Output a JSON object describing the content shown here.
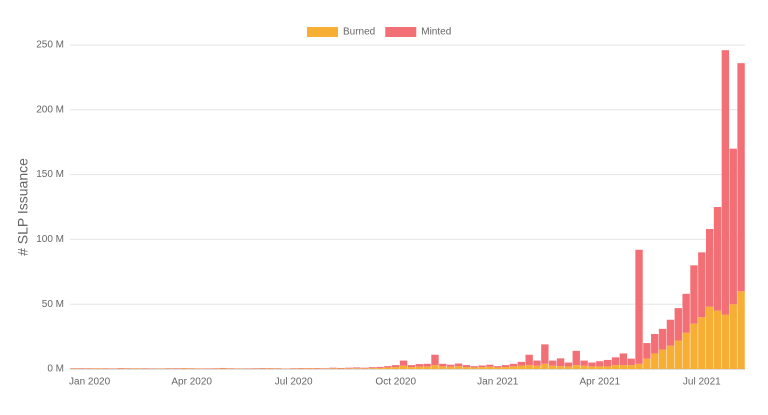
{
  "chart_data": {
    "type": "bar",
    "stacked": true,
    "y_label": "# SLP Issuance",
    "categories": [
      null,
      null,
      "Jan 2020",
      null,
      null,
      null,
      null,
      null,
      null,
      null,
      null,
      null,
      null,
      null,
      null,
      "Apr 2020",
      null,
      null,
      null,
      null,
      null,
      null,
      null,
      null,
      null,
      null,
      null,
      null,
      "Jul 2020",
      null,
      null,
      null,
      null,
      null,
      null,
      null,
      null,
      null,
      null,
      null,
      null,
      "Oct 2020",
      null,
      null,
      null,
      null,
      null,
      null,
      null,
      null,
      null,
      null,
      null,
      null,
      "Jan 2021",
      null,
      null,
      null,
      null,
      null,
      null,
      null,
      null,
      null,
      null,
      null,
      null,
      "Apr 2021",
      null,
      null,
      null,
      null,
      null,
      null,
      null,
      null,
      null,
      null,
      null,
      null,
      "Jul 2021",
      null,
      null,
      null,
      null,
      null
    ],
    "series": [
      {
        "name": "Burned",
        "color": "#f7ae35",
        "values": [
          0.3,
          0.2,
          0.3,
          0.4,
          0.3,
          0.2,
          0.3,
          0.3,
          0.4,
          0.3,
          0.2,
          0.3,
          0.3,
          0.2,
          0.4,
          0.3,
          0.3,
          0.2,
          0.3,
          0.4,
          0.3,
          0.3,
          0.2,
          0.3,
          0.3,
          0.4,
          0.3,
          0.2,
          0.3,
          0.3,
          0.4,
          0.3,
          0.3,
          0.5,
          0.4,
          0.5,
          0.6,
          0.5,
          0.7,
          0.8,
          1.2,
          1.5,
          2.5,
          1.5,
          1.8,
          2,
          3,
          2,
          1.8,
          2.2,
          1.5,
          1.2,
          1.5,
          1.8,
          1.2,
          1.5,
          2,
          2.5,
          3,
          2.5,
          4,
          2.5,
          2.2,
          2,
          3,
          2.5,
          2,
          2,
          2,
          3,
          3,
          3,
          4,
          8,
          12,
          15,
          18,
          22,
          28,
          35,
          40,
          48,
          45,
          42,
          50,
          60
        ]
      },
      {
        "name": "Minted",
        "color": "#f36f76",
        "values": [
          0.3,
          0.4,
          0.3,
          0.2,
          0.3,
          0.3,
          0.4,
          0.3,
          0.2,
          0.3,
          0.3,
          0.2,
          0.3,
          0.4,
          0.3,
          0.3,
          0.2,
          0.3,
          0.3,
          0.4,
          0.3,
          0.2,
          0.3,
          0.3,
          0.4,
          0.3,
          0.3,
          0.2,
          0.3,
          0.4,
          0.3,
          0.4,
          0.3,
          0.5,
          0.4,
          0.5,
          0.6,
          0.5,
          0.7,
          0.8,
          1,
          1.5,
          4,
          1.5,
          2,
          2,
          8,
          2,
          1.5,
          2,
          1.5,
          1,
          1.2,
          1.5,
          1,
          1.5,
          2,
          3,
          8,
          4,
          15,
          4,
          6,
          3,
          11,
          4,
          3,
          4,
          5,
          6,
          9,
          5,
          88,
          12,
          15,
          16,
          20,
          25,
          30,
          45,
          50,
          60,
          80,
          204,
          120,
          176
        ]
      }
    ],
    "ylim": [
      0,
      250
    ],
    "yticks": [
      {
        "value": 0,
        "label": "0 M"
      },
      {
        "value": 50,
        "label": "50 M"
      },
      {
        "value": 100,
        "label": "100 M"
      },
      {
        "value": 150,
        "label": "150 M"
      },
      {
        "value": 200,
        "label": "200 M"
      },
      {
        "value": 250,
        "label": "250 M"
      }
    ],
    "grid": true,
    "legend": "top"
  }
}
